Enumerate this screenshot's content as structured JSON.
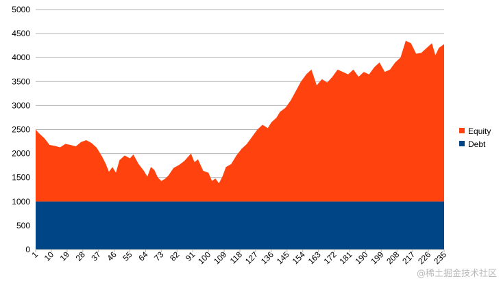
{
  "chart_data": {
    "type": "area",
    "stacked": true,
    "x_start": 1,
    "x_end": 235,
    "x_tick_labels": [
      "1",
      "10",
      "19",
      "28",
      "37",
      "46",
      "55",
      "64",
      "73",
      "82",
      "91",
      "100",
      "109",
      "118",
      "127",
      "136",
      "145",
      "154",
      "163",
      "172",
      "181",
      "190",
      "199",
      "208",
      "217",
      "226",
      "235"
    ],
    "ylim": [
      0,
      5000
    ],
    "y_ticks": [
      0,
      500,
      1000,
      1500,
      2000,
      2500,
      3000,
      3500,
      4000,
      4500,
      5000
    ],
    "grid": true,
    "legend_position": "right",
    "series": [
      {
        "name": "Debt",
        "color": "#004586",
        "points": [
          [
            1,
            1000
          ],
          [
            235,
            1000
          ]
        ]
      },
      {
        "name": "Equity",
        "color": "#ff420e",
        "points": [
          [
            1,
            1500
          ],
          [
            3,
            1420
          ],
          [
            6,
            1320
          ],
          [
            9,
            1180
          ],
          [
            12,
            1160
          ],
          [
            15,
            1130
          ],
          [
            18,
            1200
          ],
          [
            21,
            1180
          ],
          [
            24,
            1150
          ],
          [
            27,
            1240
          ],
          [
            30,
            1280
          ],
          [
            33,
            1220
          ],
          [
            36,
            1120
          ],
          [
            39,
            940
          ],
          [
            41,
            800
          ],
          [
            43,
            620
          ],
          [
            45,
            720
          ],
          [
            47,
            600
          ],
          [
            49,
            860
          ],
          [
            52,
            960
          ],
          [
            55,
            900
          ],
          [
            57,
            980
          ],
          [
            60,
            780
          ],
          [
            63,
            640
          ],
          [
            65,
            520
          ],
          [
            67,
            720
          ],
          [
            69,
            660
          ],
          [
            71,
            500
          ],
          [
            73,
            430
          ],
          [
            75,
            470
          ],
          [
            77,
            540
          ],
          [
            80,
            700
          ],
          [
            83,
            760
          ],
          [
            86,
            840
          ],
          [
            88,
            920
          ],
          [
            90,
            1000
          ],
          [
            92,
            820
          ],
          [
            94,
            880
          ],
          [
            97,
            640
          ],
          [
            100,
            600
          ],
          [
            102,
            430
          ],
          [
            104,
            480
          ],
          [
            106,
            380
          ],
          [
            108,
            520
          ],
          [
            110,
            720
          ],
          [
            113,
            780
          ],
          [
            116,
            960
          ],
          [
            119,
            1100
          ],
          [
            122,
            1200
          ],
          [
            125,
            1350
          ],
          [
            128,
            1500
          ],
          [
            131,
            1600
          ],
          [
            134,
            1530
          ],
          [
            136,
            1650
          ],
          [
            139,
            1750
          ],
          [
            141,
            1870
          ],
          [
            144,
            1950
          ],
          [
            147,
            2100
          ],
          [
            150,
            2300
          ],
          [
            153,
            2500
          ],
          [
            156,
            2650
          ],
          [
            159,
            2750
          ],
          [
            162,
            2420
          ],
          [
            165,
            2550
          ],
          [
            168,
            2480
          ],
          [
            171,
            2600
          ],
          [
            174,
            2750
          ],
          [
            177,
            2700
          ],
          [
            180,
            2650
          ],
          [
            183,
            2750
          ],
          [
            186,
            2600
          ],
          [
            189,
            2700
          ],
          [
            192,
            2650
          ],
          [
            195,
            2800
          ],
          [
            198,
            2900
          ],
          [
            201,
            2700
          ],
          [
            204,
            2750
          ],
          [
            207,
            2900
          ],
          [
            210,
            3000
          ],
          [
            213,
            3350
          ],
          [
            216,
            3300
          ],
          [
            219,
            3080
          ],
          [
            222,
            3100
          ],
          [
            225,
            3200
          ],
          [
            228,
            3300
          ],
          [
            230,
            3050
          ],
          [
            232,
            3200
          ],
          [
            235,
            3280
          ]
        ]
      }
    ]
  },
  "watermark": "@稀土掘金技术社区"
}
